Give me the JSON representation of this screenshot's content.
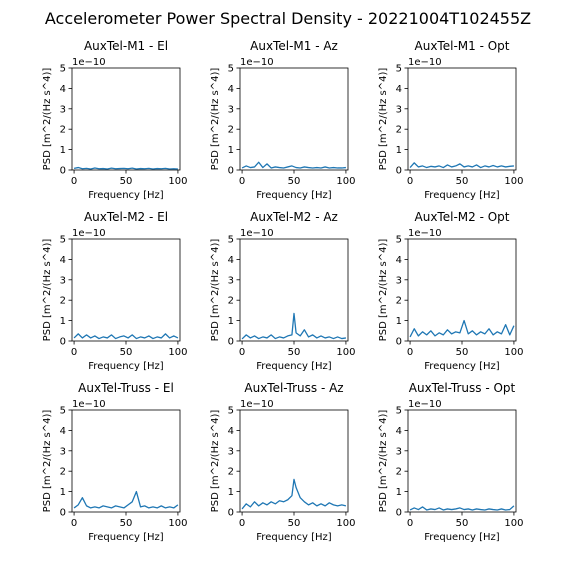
{
  "figure": {
    "title": "Accelerometer Power Spectral Density - 20221004T102455Z"
  },
  "style": {
    "line_color": "#1f77b4"
  },
  "chart_data": [
    {
      "type": "line",
      "title": "AuxTel-M1 - El",
      "xlabel": "Frequency [Hz]",
      "ylabel": "PSD [m^2/(Hz s^4)]",
      "xlim": [
        -2,
        102
      ],
      "ylim": [
        0,
        5
      ],
      "y_multiplier": "1e−10",
      "xticks": [
        0,
        50,
        100
      ],
      "yticks": [
        0,
        1,
        2,
        3,
        4,
        5
      ],
      "x": [
        0,
        4,
        8,
        12,
        16,
        20,
        24,
        28,
        32,
        36,
        40,
        44,
        48,
        52,
        56,
        60,
        64,
        68,
        72,
        76,
        80,
        84,
        88,
        92,
        96,
        100
      ],
      "series": [
        {
          "values": [
            0.08,
            0.12,
            0.06,
            0.08,
            0.05,
            0.1,
            0.06,
            0.07,
            0.05,
            0.09,
            0.06,
            0.07,
            0.08,
            0.06,
            0.09,
            0.05,
            0.07,
            0.06,
            0.08,
            0.05,
            0.07,
            0.06,
            0.08,
            0.05,
            0.06,
            0.05
          ]
        }
      ]
    },
    {
      "type": "line",
      "title": "AuxTel-M1 - Az",
      "xlabel": "Frequency [Hz]",
      "ylabel": "PSD [m^2/(Hz s^4)]",
      "xlim": [
        -2,
        102
      ],
      "ylim": [
        0,
        5
      ],
      "y_multiplier": "1e−10",
      "xticks": [
        0,
        50,
        100
      ],
      "yticks": [
        0,
        1,
        2,
        3,
        4,
        5
      ],
      "x": [
        0,
        4,
        8,
        12,
        16,
        20,
        24,
        28,
        32,
        36,
        40,
        44,
        48,
        52,
        56,
        60,
        64,
        68,
        72,
        76,
        80,
        84,
        88,
        92,
        96,
        100
      ],
      "series": [
        {
          "values": [
            0.1,
            0.2,
            0.12,
            0.15,
            0.38,
            0.12,
            0.3,
            0.1,
            0.15,
            0.12,
            0.1,
            0.15,
            0.2,
            0.12,
            0.1,
            0.15,
            0.12,
            0.1,
            0.12,
            0.1,
            0.15,
            0.1,
            0.12,
            0.1,
            0.1,
            0.12
          ]
        }
      ]
    },
    {
      "type": "line",
      "title": "AuxTel-M1 - Opt",
      "xlabel": "Frequency [Hz]",
      "ylabel": "PSD [m^2/(Hz s^4)]",
      "xlim": [
        -2,
        102
      ],
      "ylim": [
        0,
        5
      ],
      "y_multiplier": "1e−10",
      "xticks": [
        0,
        50,
        100
      ],
      "yticks": [
        0,
        1,
        2,
        3,
        4,
        5
      ],
      "x": [
        0,
        4,
        8,
        12,
        16,
        20,
        24,
        28,
        32,
        36,
        40,
        44,
        48,
        52,
        56,
        60,
        64,
        68,
        72,
        76,
        80,
        84,
        88,
        92,
        96,
        100
      ],
      "series": [
        {
          "values": [
            0.12,
            0.35,
            0.15,
            0.2,
            0.12,
            0.18,
            0.15,
            0.2,
            0.12,
            0.25,
            0.15,
            0.2,
            0.3,
            0.15,
            0.2,
            0.15,
            0.25,
            0.12,
            0.2,
            0.15,
            0.22,
            0.15,
            0.2,
            0.15,
            0.18,
            0.2
          ]
        }
      ]
    },
    {
      "type": "line",
      "title": "AuxTel-M2 - El",
      "xlabel": "Frequency [Hz]",
      "ylabel": "PSD [m^2/(Hz s^4)]",
      "xlim": [
        -2,
        102
      ],
      "ylim": [
        0,
        5
      ],
      "y_multiplier": "1e−10",
      "xticks": [
        0,
        50,
        100
      ],
      "yticks": [
        0,
        1,
        2,
        3,
        4,
        5
      ],
      "x": [
        0,
        4,
        8,
        12,
        16,
        20,
        24,
        28,
        32,
        36,
        40,
        44,
        48,
        52,
        56,
        60,
        64,
        68,
        72,
        76,
        80,
        84,
        88,
        92,
        96,
        100
      ],
      "series": [
        {
          "values": [
            0.15,
            0.35,
            0.15,
            0.3,
            0.15,
            0.25,
            0.12,
            0.2,
            0.15,
            0.3,
            0.12,
            0.2,
            0.25,
            0.15,
            0.3,
            0.12,
            0.2,
            0.15,
            0.25,
            0.12,
            0.2,
            0.15,
            0.35,
            0.15,
            0.25,
            0.15
          ]
        }
      ]
    },
    {
      "type": "line",
      "title": "AuxTel-M2 - Az",
      "xlabel": "Frequency [Hz]",
      "ylabel": "PSD [m^2/(Hz s^4)]",
      "xlim": [
        -2,
        102
      ],
      "ylim": [
        0,
        5
      ],
      "y_multiplier": "1e−10",
      "xticks": [
        0,
        50,
        100
      ],
      "yticks": [
        0,
        1,
        2,
        3,
        4,
        5
      ],
      "x": [
        0,
        4,
        8,
        12,
        16,
        20,
        24,
        28,
        32,
        36,
        40,
        44,
        48,
        50,
        52,
        56,
        60,
        64,
        68,
        72,
        76,
        80,
        84,
        88,
        92,
        96,
        100
      ],
      "series": [
        {
          "values": [
            0.1,
            0.3,
            0.15,
            0.25,
            0.12,
            0.2,
            0.15,
            0.3,
            0.12,
            0.2,
            0.15,
            0.25,
            0.3,
            1.35,
            0.4,
            0.25,
            0.55,
            0.2,
            0.3,
            0.15,
            0.25,
            0.15,
            0.2,
            0.12,
            0.2,
            0.12,
            0.15
          ]
        }
      ]
    },
    {
      "type": "line",
      "title": "AuxTel-M2 - Opt",
      "xlabel": "Frequency [Hz]",
      "ylabel": "PSD [m^2/(Hz s^4)]",
      "xlim": [
        -2,
        102
      ],
      "ylim": [
        0,
        5
      ],
      "y_multiplier": "1e−10",
      "xticks": [
        0,
        50,
        100
      ],
      "yticks": [
        0,
        1,
        2,
        3,
        4,
        5
      ],
      "x": [
        0,
        4,
        8,
        12,
        16,
        20,
        24,
        28,
        32,
        36,
        40,
        44,
        48,
        52,
        56,
        60,
        64,
        68,
        72,
        76,
        80,
        84,
        88,
        92,
        96,
        100
      ],
      "series": [
        {
          "values": [
            0.2,
            0.6,
            0.25,
            0.45,
            0.3,
            0.5,
            0.25,
            0.4,
            0.3,
            0.55,
            0.35,
            0.45,
            0.4,
            1.0,
            0.35,
            0.5,
            0.3,
            0.45,
            0.35,
            0.6,
            0.3,
            0.45,
            0.35,
            0.8,
            0.3,
            0.75
          ]
        }
      ]
    },
    {
      "type": "line",
      "title": "AuxTel-Truss - El",
      "xlabel": "Frequency [Hz]",
      "ylabel": "PSD [m^2/(Hz s^4)]",
      "xlim": [
        -2,
        102
      ],
      "ylim": [
        0,
        5
      ],
      "y_multiplier": "1e−10",
      "xticks": [
        0,
        50,
        100
      ],
      "yticks": [
        0,
        1,
        2,
        3,
        4,
        5
      ],
      "x": [
        0,
        4,
        8,
        12,
        16,
        20,
        24,
        28,
        32,
        36,
        40,
        44,
        48,
        52,
        56,
        60,
        64,
        68,
        72,
        76,
        80,
        84,
        88,
        92,
        96,
        100
      ],
      "series": [
        {
          "values": [
            0.2,
            0.35,
            0.7,
            0.3,
            0.2,
            0.25,
            0.2,
            0.3,
            0.25,
            0.2,
            0.3,
            0.25,
            0.2,
            0.35,
            0.5,
            1.0,
            0.25,
            0.3,
            0.2,
            0.25,
            0.2,
            0.3,
            0.2,
            0.25,
            0.2,
            0.35
          ]
        }
      ]
    },
    {
      "type": "line",
      "title": "AuxTel-Truss - Az",
      "xlabel": "Frequency [Hz]",
      "ylabel": "PSD [m^2/(Hz s^4)]",
      "xlim": [
        -2,
        102
      ],
      "ylim": [
        0,
        5
      ],
      "y_multiplier": "1e−10",
      "xticks": [
        0,
        50,
        100
      ],
      "yticks": [
        0,
        1,
        2,
        3,
        4,
        5
      ],
      "x": [
        0,
        4,
        8,
        12,
        16,
        20,
        24,
        28,
        32,
        36,
        40,
        44,
        48,
        50,
        52,
        56,
        60,
        64,
        68,
        72,
        76,
        80,
        84,
        88,
        92,
        96,
        100
      ],
      "series": [
        {
          "values": [
            0.15,
            0.4,
            0.25,
            0.5,
            0.3,
            0.45,
            0.35,
            0.5,
            0.4,
            0.55,
            0.5,
            0.6,
            0.8,
            1.6,
            1.2,
            0.7,
            0.5,
            0.35,
            0.45,
            0.3,
            0.4,
            0.3,
            0.45,
            0.35,
            0.3,
            0.35,
            0.3
          ]
        }
      ]
    },
    {
      "type": "line",
      "title": "AuxTel-Truss - Opt",
      "xlabel": "Frequency [Hz]",
      "ylabel": "PSD [m^2/(Hz s^4)]",
      "xlim": [
        -2,
        102
      ],
      "ylim": [
        0,
        5
      ],
      "y_multiplier": "1e−10",
      "xticks": [
        0,
        50,
        100
      ],
      "yticks": [
        0,
        1,
        2,
        3,
        4,
        5
      ],
      "x": [
        0,
        4,
        8,
        12,
        16,
        20,
        24,
        28,
        32,
        36,
        40,
        44,
        48,
        52,
        56,
        60,
        64,
        68,
        72,
        76,
        80,
        84,
        88,
        92,
        96,
        100
      ],
      "series": [
        {
          "values": [
            0.1,
            0.2,
            0.12,
            0.25,
            0.1,
            0.15,
            0.12,
            0.2,
            0.1,
            0.15,
            0.12,
            0.15,
            0.2,
            0.12,
            0.15,
            0.1,
            0.15,
            0.12,
            0.1,
            0.15,
            0.12,
            0.1,
            0.15,
            0.1,
            0.12,
            0.3
          ]
        }
      ]
    }
  ]
}
